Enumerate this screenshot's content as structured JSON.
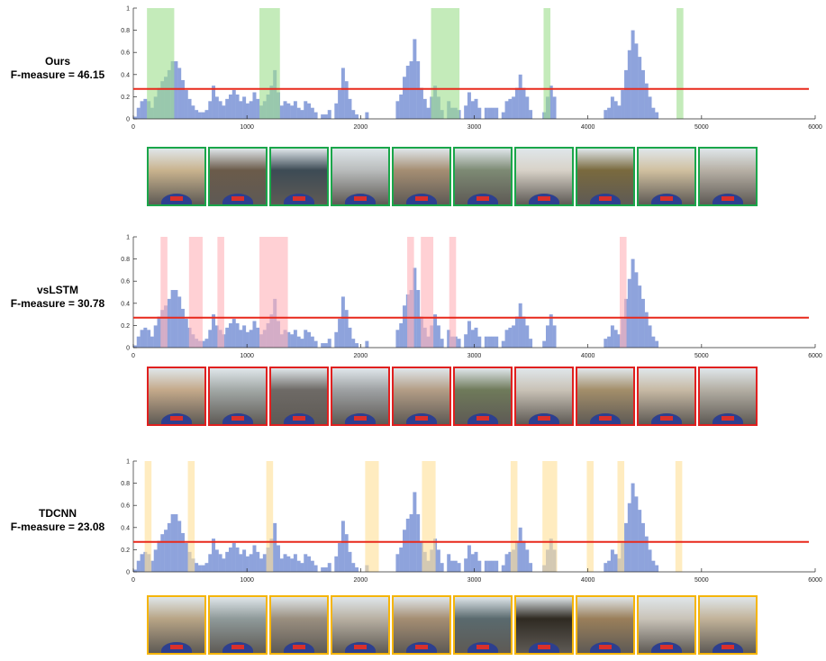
{
  "chart_data": [
    {
      "type": "bar",
      "method": "Ours",
      "score_label": "F-measure = 46.15",
      "xlim": [
        0,
        6000
      ],
      "ylim": [
        0,
        1
      ],
      "x_ticks": [
        "0",
        "1000",
        "2000",
        "3000",
        "4000",
        "5000",
        "6000"
      ],
      "y_ticks": [
        "0",
        "0.2",
        "0.4",
        "0.6",
        "0.8",
        "1"
      ],
      "threshold": 0.27,
      "highlight_color": "#9fdf8f",
      "border_color": "#1aa64a",
      "selected_segments": [
        [
          120,
          360
        ],
        [
          1110,
          1290
        ],
        [
          2620,
          2870
        ],
        [
          3610,
          3670
        ],
        [
          4780,
          4840
        ]
      ],
      "frame_count": 10
    },
    {
      "type": "bar",
      "method": "vsLSTM",
      "score_label": "F-measure = 30.78",
      "xlim": [
        0,
        6000
      ],
      "ylim": [
        0,
        1
      ],
      "x_ticks": [
        "0",
        "1000",
        "2000",
        "3000",
        "4000",
        "5000",
        "6000"
      ],
      "y_ticks": [
        "0",
        "0.2",
        "0.4",
        "0.6",
        "0.8",
        "1"
      ],
      "threshold": 0.27,
      "highlight_color": "#ffb3ba",
      "border_color": "#e0201f",
      "selected_segments": [
        [
          240,
          300
        ],
        [
          490,
          610
        ],
        [
          740,
          800
        ],
        [
          1110,
          1360
        ],
        [
          2410,
          2470
        ],
        [
          2530,
          2640
        ],
        [
          2780,
          2840
        ],
        [
          4280,
          4340
        ]
      ],
      "frame_count": 10
    },
    {
      "type": "bar",
      "method": "TDCNN",
      "score_label": "F-measure = 23.08",
      "xlim": [
        0,
        6000
      ],
      "ylim": [
        0,
        1
      ],
      "x_ticks": [
        "0",
        "1000",
        "2000",
        "3000",
        "4000",
        "5000",
        "6000"
      ],
      "y_ticks": [
        "0",
        "0.2",
        "0.4",
        "0.6",
        "0.8",
        "1"
      ],
      "threshold": 0.27,
      "highlight_color": "#ffe09a",
      "border_color": "#f5b50a",
      "selected_segments": [
        [
          100,
          160
        ],
        [
          480,
          540
        ],
        [
          1170,
          1230
        ],
        [
          2040,
          2160
        ],
        [
          2540,
          2660
        ],
        [
          3320,
          3380
        ],
        [
          3600,
          3730
        ],
        [
          3990,
          4050
        ],
        [
          4260,
          4320
        ],
        [
          4770,
          4830
        ]
      ],
      "frame_count": 10
    }
  ],
  "importance_scores": [
    [
      0.02,
      0.1,
      0.16,
      0.18,
      0.16,
      0.1,
      0.2,
      0.28,
      0.34,
      0.38,
      0.44,
      0.52,
      0.52,
      0.46,
      0.35,
      0.26,
      0.18,
      0.12,
      0.08,
      0.06,
      0.06,
      0.08,
      0.16,
      0.3,
      0.2,
      0.16,
      0.12,
      0.18,
      0.22,
      0.26,
      0.22,
      0.16,
      0.2,
      0.14,
      0.16,
      0.24,
      0.18,
      0.12,
      0.16,
      0.22,
      0.3,
      0.44,
      0.24,
      0.12,
      0.16,
      0.14,
      0.12,
      0.16,
      0.1,
      0.08,
      0.16,
      0.14,
      0.1,
      0.06,
      0.0,
      0.04,
      0.04,
      0.08,
      0.0,
      0.14,
      0.26,
      0.46,
      0.34,
      0.18,
      0.08,
      0.04,
      0.0,
      0.0,
      0.06,
      0.0,
      0.0,
      0.0,
      0.0,
      0.0,
      0.0,
      0.0,
      0.0,
      0.16,
      0.22,
      0.38,
      0.48,
      0.52,
      0.72,
      0.52,
      0.28,
      0.18,
      0.1,
      0.2,
      0.3,
      0.2,
      0.08,
      0.0,
      0.16,
      0.1,
      0.1,
      0.08,
      0.0,
      0.12,
      0.24,
      0.16,
      0.18,
      0.1,
      0.0,
      0.1,
      0.1,
      0.1,
      0.1,
      0.0,
      0.06,
      0.16,
      0.18,
      0.2,
      0.28,
      0.4,
      0.28,
      0.2,
      0.08,
      0.0,
      0.0,
      0.0,
      0.06,
      0.2,
      0.3,
      0.2,
      0.0,
      0.0,
      0.0,
      0.0,
      0.0,
      0.0,
      0.0,
      0.0,
      0.0,
      0.0,
      0.0,
      0.0,
      0.0,
      0.0,
      0.08,
      0.1,
      0.2,
      0.16,
      0.12,
      0.26,
      0.44,
      0.62,
      0.8,
      0.68,
      0.56,
      0.44,
      0.32,
      0.2,
      0.1,
      0.06,
      0.0,
      0.0,
      0.0,
      0.0,
      0.0,
      0.0,
      0.0,
      0.0,
      0.0,
      0.0,
      0.0,
      0.0,
      0.0,
      0.0,
      0.0,
      0.0,
      0.0,
      0.0,
      0.0,
      0.0,
      0.0,
      0.0,
      0.0,
      0.0,
      0.0,
      0.0,
      0.0,
      0.0,
      0.0,
      0.0,
      0.0,
      0.0,
      0.0,
      0.0,
      0.0,
      0.0
    ],
    [
      0.02,
      0.1,
      0.16,
      0.18,
      0.16,
      0.1,
      0.2,
      0.28,
      0.34,
      0.38,
      0.44,
      0.52,
      0.52,
      0.46,
      0.35,
      0.26,
      0.18,
      0.12,
      0.08,
      0.06,
      0.06,
      0.08,
      0.16,
      0.3,
      0.2,
      0.16,
      0.12,
      0.18,
      0.22,
      0.26,
      0.22,
      0.16,
      0.2,
      0.14,
      0.16,
      0.24,
      0.18,
      0.12,
      0.16,
      0.22,
      0.3,
      0.44,
      0.24,
      0.12,
      0.16,
      0.14,
      0.12,
      0.16,
      0.1,
      0.08,
      0.16,
      0.14,
      0.1,
      0.06,
      0.0,
      0.04,
      0.04,
      0.08,
      0.0,
      0.14,
      0.26,
      0.46,
      0.34,
      0.18,
      0.08,
      0.04,
      0.0,
      0.0,
      0.06,
      0.0,
      0.0,
      0.0,
      0.0,
      0.0,
      0.0,
      0.0,
      0.0,
      0.16,
      0.22,
      0.38,
      0.48,
      0.52,
      0.72,
      0.52,
      0.28,
      0.18,
      0.1,
      0.2,
      0.3,
      0.2,
      0.08,
      0.0,
      0.16,
      0.1,
      0.1,
      0.08,
      0.0,
      0.12,
      0.24,
      0.16,
      0.18,
      0.1,
      0.0,
      0.1,
      0.1,
      0.1,
      0.1,
      0.0,
      0.06,
      0.16,
      0.18,
      0.2,
      0.28,
      0.4,
      0.28,
      0.2,
      0.08,
      0.0,
      0.0,
      0.0,
      0.06,
      0.2,
      0.3,
      0.2,
      0.0,
      0.0,
      0.0,
      0.0,
      0.0,
      0.0,
      0.0,
      0.0,
      0.0,
      0.0,
      0.0,
      0.0,
      0.0,
      0.0,
      0.08,
      0.1,
      0.2,
      0.16,
      0.12,
      0.26,
      0.44,
      0.62,
      0.8,
      0.68,
      0.56,
      0.44,
      0.32,
      0.2,
      0.1,
      0.06,
      0.0,
      0.0,
      0.0,
      0.0,
      0.0,
      0.0,
      0.0,
      0.0,
      0.0,
      0.0,
      0.0,
      0.0,
      0.0,
      0.0,
      0.0,
      0.0,
      0.0,
      0.0,
      0.0,
      0.0,
      0.0,
      0.0,
      0.0,
      0.0,
      0.0,
      0.0,
      0.0,
      0.0,
      0.0,
      0.0,
      0.0,
      0.0,
      0.0,
      0.0,
      0.0,
      0.0
    ],
    [
      0.02,
      0.1,
      0.16,
      0.18,
      0.16,
      0.1,
      0.2,
      0.28,
      0.34,
      0.38,
      0.44,
      0.52,
      0.52,
      0.46,
      0.35,
      0.26,
      0.18,
      0.12,
      0.08,
      0.06,
      0.06,
      0.08,
      0.16,
      0.3,
      0.2,
      0.16,
      0.12,
      0.18,
      0.22,
      0.26,
      0.22,
      0.16,
      0.2,
      0.14,
      0.16,
      0.24,
      0.18,
      0.12,
      0.16,
      0.22,
      0.3,
      0.44,
      0.24,
      0.12,
      0.16,
      0.14,
      0.12,
      0.16,
      0.1,
      0.08,
      0.16,
      0.14,
      0.1,
      0.06,
      0.0,
      0.04,
      0.04,
      0.08,
      0.0,
      0.14,
      0.26,
      0.46,
      0.34,
      0.18,
      0.08,
      0.04,
      0.0,
      0.0,
      0.06,
      0.0,
      0.0,
      0.0,
      0.0,
      0.0,
      0.0,
      0.0,
      0.0,
      0.16,
      0.22,
      0.38,
      0.48,
      0.52,
      0.72,
      0.52,
      0.28,
      0.18,
      0.1,
      0.2,
      0.3,
      0.2,
      0.08,
      0.0,
      0.16,
      0.1,
      0.1,
      0.08,
      0.0,
      0.12,
      0.24,
      0.16,
      0.18,
      0.1,
      0.0,
      0.1,
      0.1,
      0.1,
      0.1,
      0.0,
      0.06,
      0.16,
      0.18,
      0.2,
      0.28,
      0.4,
      0.28,
      0.2,
      0.08,
      0.0,
      0.0,
      0.0,
      0.06,
      0.2,
      0.3,
      0.2,
      0.0,
      0.0,
      0.0,
      0.0,
      0.0,
      0.0,
      0.0,
      0.0,
      0.0,
      0.0,
      0.0,
      0.0,
      0.0,
      0.0,
      0.08,
      0.1,
      0.2,
      0.16,
      0.12,
      0.26,
      0.44,
      0.62,
      0.8,
      0.68,
      0.56,
      0.44,
      0.32,
      0.2,
      0.1,
      0.06,
      0.0,
      0.0,
      0.0,
      0.0,
      0.0,
      0.0,
      0.0,
      0.0,
      0.0,
      0.0,
      0.0,
      0.0,
      0.0,
      0.0,
      0.0,
      0.0,
      0.0,
      0.0,
      0.0,
      0.0,
      0.0,
      0.0,
      0.0,
      0.0,
      0.0,
      0.0,
      0.0,
      0.0,
      0.0,
      0.0,
      0.0,
      0.0,
      0.0,
      0.0,
      0.0,
      0.0
    ]
  ],
  "score_bar_color": "#8ea3dc",
  "threshold_color": "#e8291b",
  "frame_palettes": [
    [
      "#c9b38e",
      "#6b5b4a",
      "#3d4b55",
      "#b9bcbc",
      "#a58e73",
      "#7d8a74",
      "#d8d2c8",
      "#7a6a3e",
      "#d0c0a0",
      "#b7b0a5"
    ],
    [
      "#c4a98a",
      "#a2a8a6",
      "#6e6a66",
      "#9ea1a3",
      "#b39d86",
      "#6f7a5a",
      "#c9c2b6",
      "#a38e6a",
      "#c7b9a4",
      "#b3aea3"
    ],
    [
      "#b8a586",
      "#8f9a9a",
      "#9a8f80",
      "#b8b0a2",
      "#a58e73",
      "#5a6a6e",
      "#2f2a22",
      "#9a7f5a",
      "#c9c3b8",
      "#c2b39a"
    ]
  ]
}
